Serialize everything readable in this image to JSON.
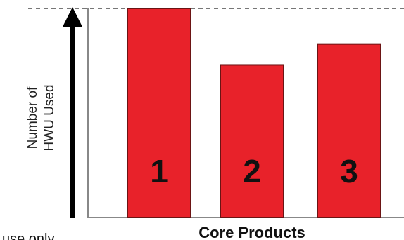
{
  "chart_data": {
    "type": "bar",
    "categories": [
      "1",
      "2",
      "3"
    ],
    "values": [
      100,
      73,
      83
    ],
    "ylabel_lines": [
      "Number of",
      "HWU Used"
    ],
    "xlabel": "Core Products",
    "ylim": [
      0,
      100
    ],
    "reference_line": "dashed line at maximum",
    "grid": false,
    "bar_color": "#e8222a",
    "bar_edge_color": "#6b1414"
  },
  "footnote": "use only"
}
